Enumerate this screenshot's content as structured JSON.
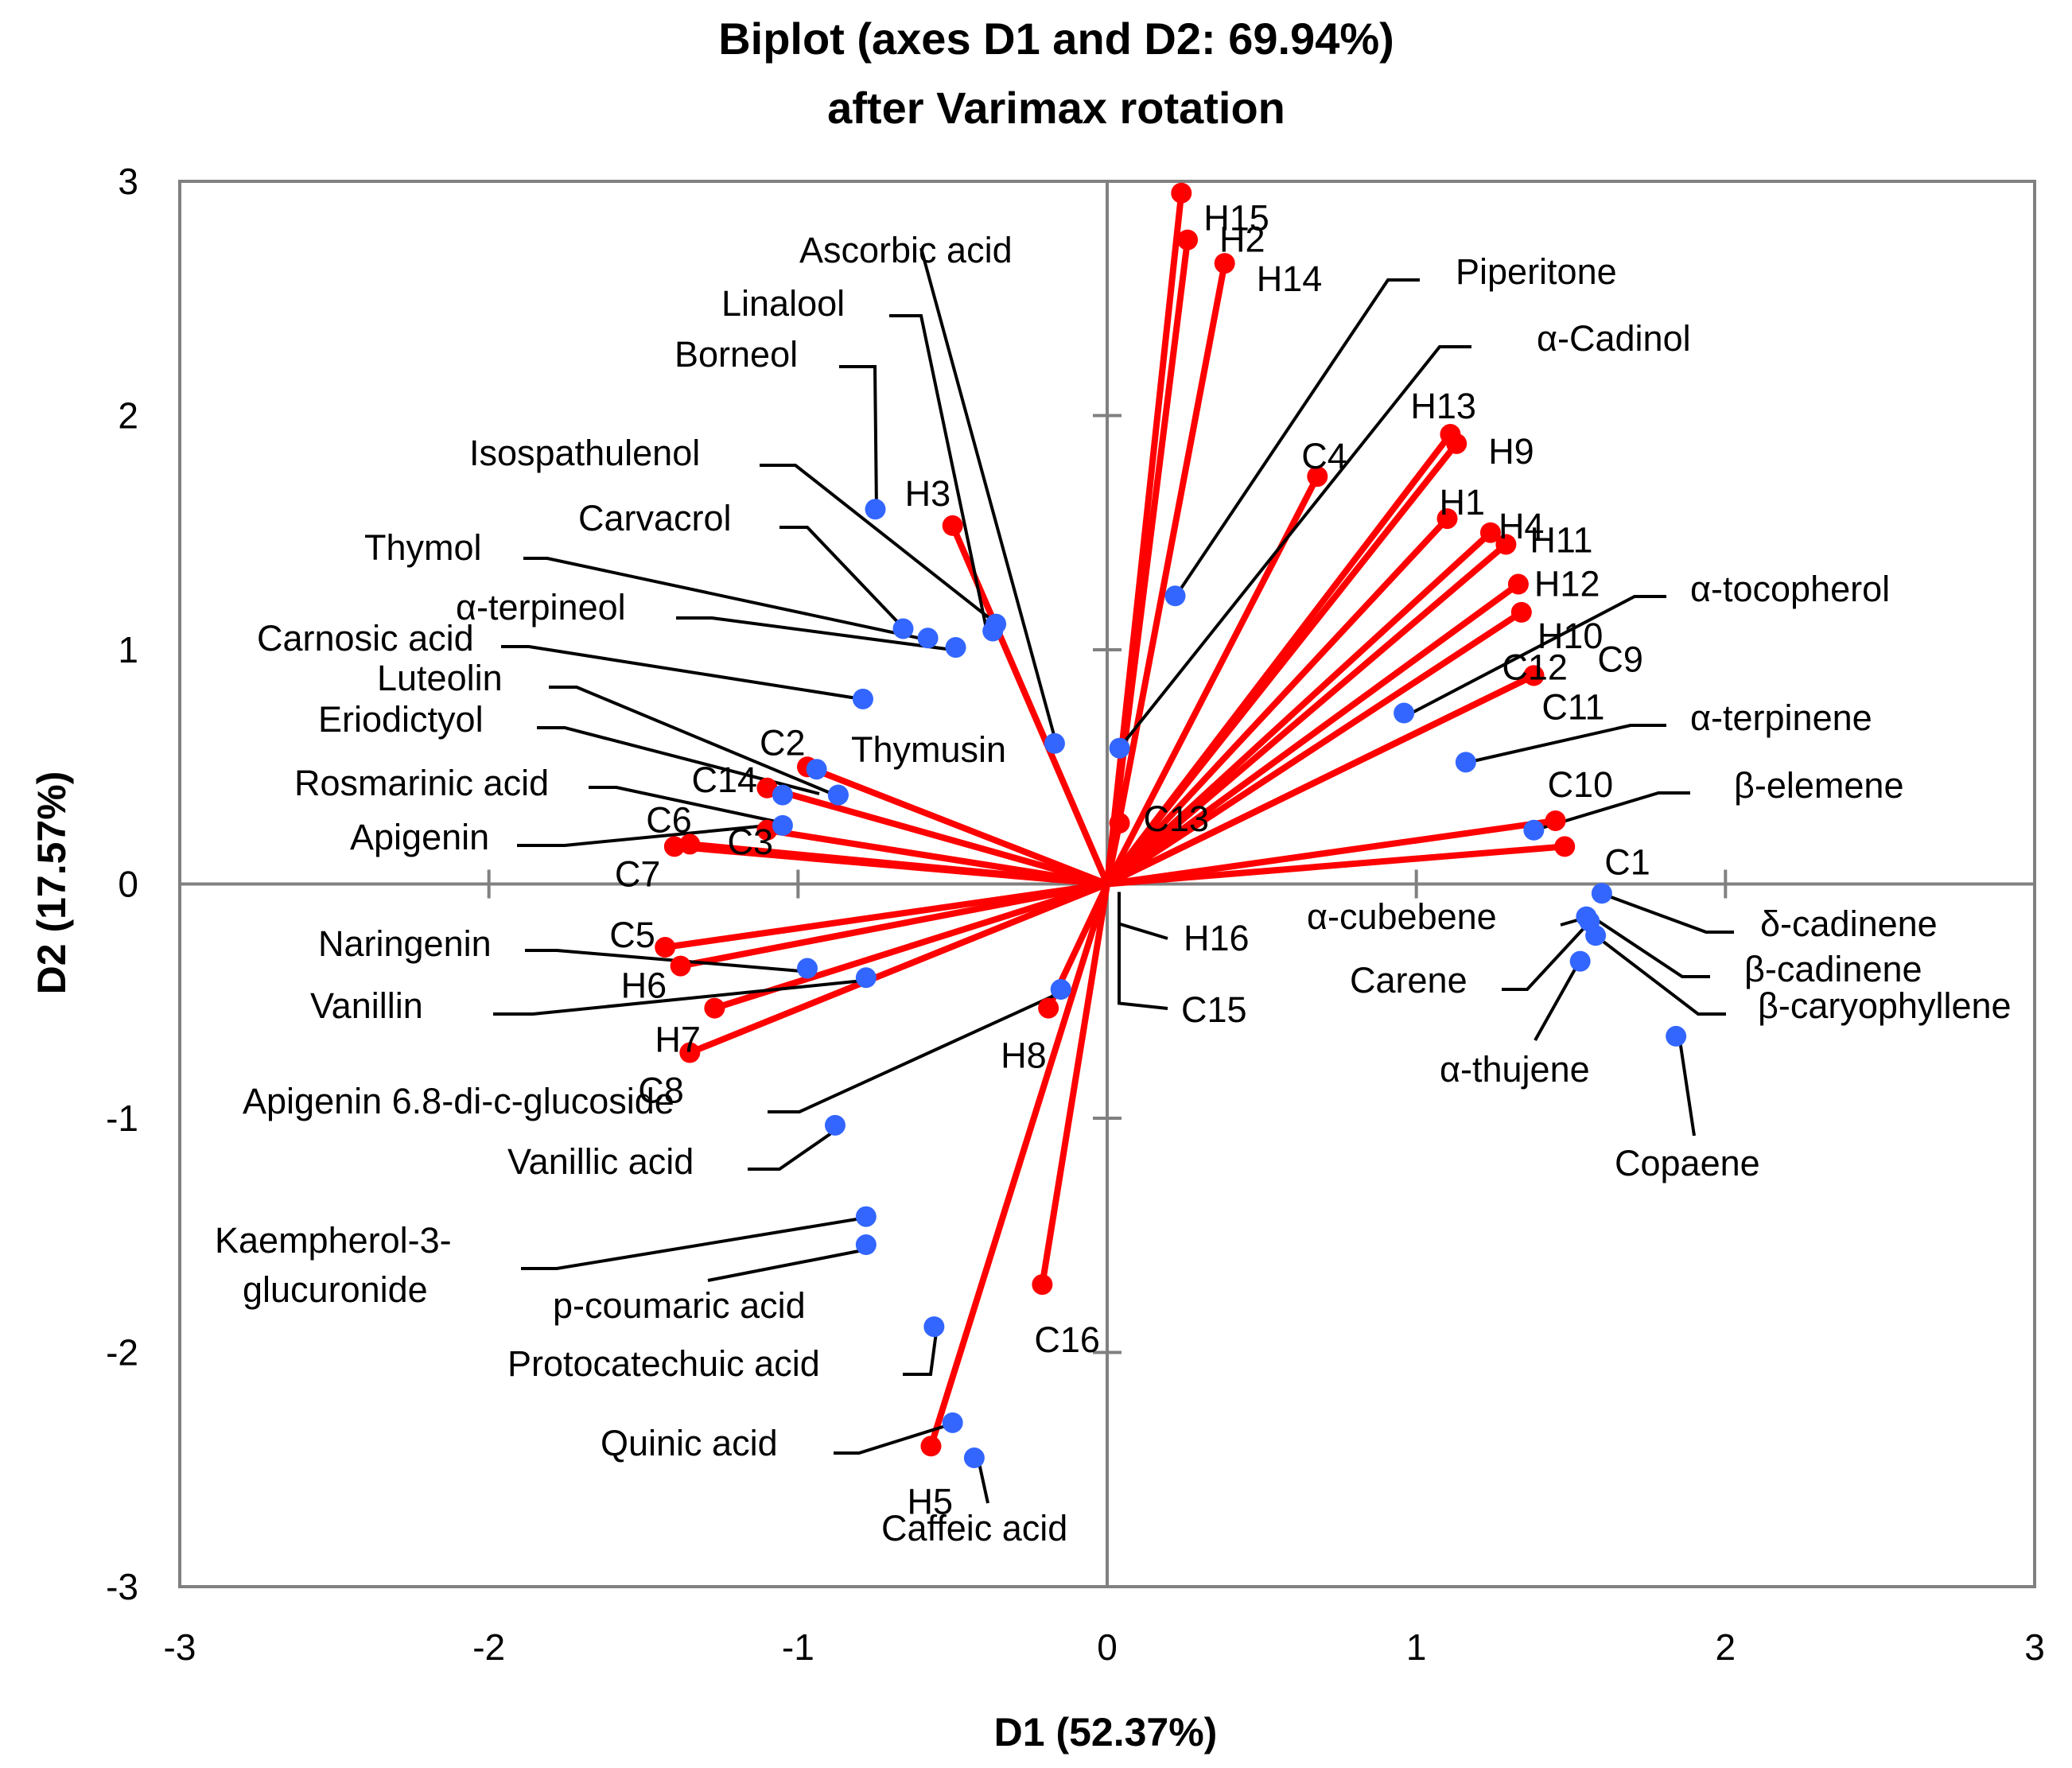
{
  "chart_data": {
    "type": "scatter",
    "subtype": "biplot",
    "title": [
      "Biplot (axes D1 and D2: 69.94%)",
      "after Varimax rotation"
    ],
    "xlabel": "D1 (52.37%)",
    "ylabel": "D2 (17.57%)",
    "xlim": [
      -3,
      3
    ],
    "ylim": [
      -3,
      3
    ],
    "xticks": [
      "-3",
      "-2",
      "-1",
      "0",
      "1",
      "2",
      "3"
    ],
    "yticks": [
      "-3",
      "-2",
      "-1",
      "0",
      "1",
      "2",
      "3"
    ],
    "colors": {
      "observations": "#ff0000",
      "variables": "#3366ff",
      "leader": "#000000",
      "frame": "#808080"
    },
    "series": [
      {
        "name": "Observations",
        "color": "#ff0000",
        "vectors": true,
        "points": [
          {
            "label": "H15",
            "x": 0.24,
            "y": 2.95
          },
          {
            "label": "H2",
            "x": 0.26,
            "y": 2.75
          },
          {
            "label": "H14",
            "x": 0.38,
            "y": 2.65
          },
          {
            "label": "C4",
            "x": 0.68,
            "y": 1.74
          },
          {
            "label": "H13",
            "x": 1.11,
            "y": 1.92
          },
          {
            "label": "H9",
            "x": 1.13,
            "y": 1.88
          },
          {
            "label": "H1",
            "x": 1.1,
            "y": 1.56
          },
          {
            "label": "H4",
            "x": 1.24,
            "y": 1.5
          },
          {
            "label": "H11",
            "x": 1.29,
            "y": 1.45
          },
          {
            "label": "H12",
            "x": 1.33,
            "y": 1.28
          },
          {
            "label": "H10",
            "x": 1.34,
            "y": 1.16
          },
          {
            "label": "C12",
            "x": 1.38,
            "y": 0.89
          },
          {
            "label": "C9",
            "x": 1.38,
            "y": 0.89
          },
          {
            "label": "C11",
            "x": 1.38,
            "y": 0.89
          },
          {
            "label": "C10",
            "x": 1.45,
            "y": 0.27
          },
          {
            "label": "C1",
            "x": 1.48,
            "y": 0.16
          },
          {
            "label": "C13",
            "x": 0.04,
            "y": 0.26
          },
          {
            "label": "H16",
            "x": 0.0,
            "y": 0.0
          },
          {
            "label": "C15",
            "x": 0.0,
            "y": 0.0
          },
          {
            "label": "H3",
            "x": -0.5,
            "y": 1.53
          },
          {
            "label": "C2",
            "x": -0.97,
            "y": 0.5
          },
          {
            "label": "C14",
            "x": -1.1,
            "y": 0.41
          },
          {
            "label": "C3",
            "x": -1.1,
            "y": 0.23
          },
          {
            "label": "C6",
            "x": -1.35,
            "y": 0.17
          },
          {
            "label": "C7",
            "x": -1.4,
            "y": 0.16
          },
          {
            "label": "C5",
            "x": -1.43,
            "y": -0.27
          },
          {
            "label": "H6",
            "x": -1.38,
            "y": -0.35
          },
          {
            "label": "H7",
            "x": -1.27,
            "y": -0.53
          },
          {
            "label": "C8",
            "x": -1.35,
            "y": -0.72
          },
          {
            "label": "H8",
            "x": -0.19,
            "y": -0.53
          },
          {
            "label": "C16",
            "x": -0.21,
            "y": -1.71
          },
          {
            "label": "H5",
            "x": -0.57,
            "y": -2.4
          }
        ]
      },
      {
        "name": "Variables",
        "color": "#3366ff",
        "vectors": false,
        "points": [
          {
            "label": "Ascorbic acid",
            "x": -0.17,
            "y": 0.6
          },
          {
            "label": "Linalool",
            "x": -0.36,
            "y": 1.11
          },
          {
            "label": "Borneol",
            "x": -0.75,
            "y": 1.6
          },
          {
            "label": "Isospathulenol",
            "x": -0.37,
            "y": 1.08
          },
          {
            "label": "Carvacrol",
            "x": -0.66,
            "y": 1.09
          },
          {
            "label": "Thymol",
            "x": -0.58,
            "y": 1.05
          },
          {
            "label": "α-terpineol",
            "x": -0.49,
            "y": 1.01
          },
          {
            "label": "Carnosic acid",
            "x": -0.79,
            "y": 0.79
          },
          {
            "label": "Luteolin",
            "x": -0.94,
            "y": 0.49
          },
          {
            "label": "Eriodictyol",
            "x": -0.87,
            "y": 0.38
          },
          {
            "label": "Rosmarinic acid",
            "x": -1.05,
            "y": 0.38
          },
          {
            "label": "Apigenin",
            "x": -1.05,
            "y": 0.25
          },
          {
            "label": "Thymusin",
            "x": -0.87,
            "y": 0.38
          },
          {
            "label": "Naringenin",
            "x": -0.97,
            "y": -0.36
          },
          {
            "label": "Vanillin",
            "x": -0.78,
            "y": -0.4
          },
          {
            "label": "Apigenin 6.8-di-c-glucoside",
            "x": -0.15,
            "y": -0.45
          },
          {
            "label": "Vanillic acid",
            "x": -0.88,
            "y": -1.03
          },
          {
            "label": "Kaempherol-3-glucuronide",
            "x": -0.78,
            "y": -1.42
          },
          {
            "label": "p-coumaric acid",
            "x": -0.78,
            "y": -1.54
          },
          {
            "label": "Protocatechuic acid",
            "x": -0.56,
            "y": -1.89
          },
          {
            "label": "Quinic acid",
            "x": -0.5,
            "y": -2.3
          },
          {
            "label": "Caffeic acid",
            "x": -0.43,
            "y": -2.45
          },
          {
            "label": "Piperitone",
            "x": 0.22,
            "y": 1.23
          },
          {
            "label": "α-Cadinol",
            "x": 0.04,
            "y": 0.58
          },
          {
            "label": "α-tocopherol",
            "x": 0.96,
            "y": 0.73
          },
          {
            "label": "α-terpinene",
            "x": 1.16,
            "y": 0.52
          },
          {
            "label": "β-elemene",
            "x": 1.38,
            "y": 0.23
          },
          {
            "label": "δ-cadinene",
            "x": 1.6,
            "y": -0.04
          },
          {
            "label": "α-cubebene",
            "x": 1.55,
            "y": -0.14
          },
          {
            "label": "β-cadinene",
            "x": 1.56,
            "y": -0.16
          },
          {
            "label": "β-caryophyllene",
            "x": 1.58,
            "y": -0.22
          },
          {
            "label": "Carene",
            "x": 1.55,
            "y": -0.14
          },
          {
            "label": "α-thujene",
            "x": 1.53,
            "y": -0.33
          },
          {
            "label": "Copaene",
            "x": 1.84,
            "y": -0.65
          }
        ]
      }
    ]
  }
}
